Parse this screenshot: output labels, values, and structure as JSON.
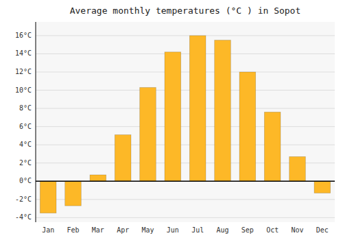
{
  "chart_data": {
    "type": "bar",
    "title": "Average monthly temperatures (°C ) in Sopot",
    "categories": [
      "Jan",
      "Feb",
      "Mar",
      "Apr",
      "May",
      "Jun",
      "Jul",
      "Aug",
      "Sep",
      "Oct",
      "Nov",
      "Dec"
    ],
    "values": [
      -3.5,
      -2.7,
      0.7,
      5.1,
      10.3,
      14.2,
      16.0,
      15.5,
      12.0,
      7.6,
      2.7,
      -1.3
    ],
    "color": "#FDB827",
    "ylim": [
      -4.5,
      17.5
    ],
    "yticks": [
      {
        "value": -4,
        "label": "-4°C"
      },
      {
        "value": -2,
        "label": "-2°C"
      },
      {
        "value": 0,
        "label": "0°C"
      },
      {
        "value": 2,
        "label": "2°C"
      },
      {
        "value": 4,
        "label": "4°C"
      },
      {
        "value": 6,
        "label": "6°C"
      },
      {
        "value": 8,
        "label": "8°C"
      },
      {
        "value": 10,
        "label": "10°C"
      },
      {
        "value": 12,
        "label": "12°C"
      },
      {
        "value": 14,
        "label": "14°C"
      },
      {
        "value": 16,
        "label": "16°C"
      }
    ],
    "grid": true
  }
}
